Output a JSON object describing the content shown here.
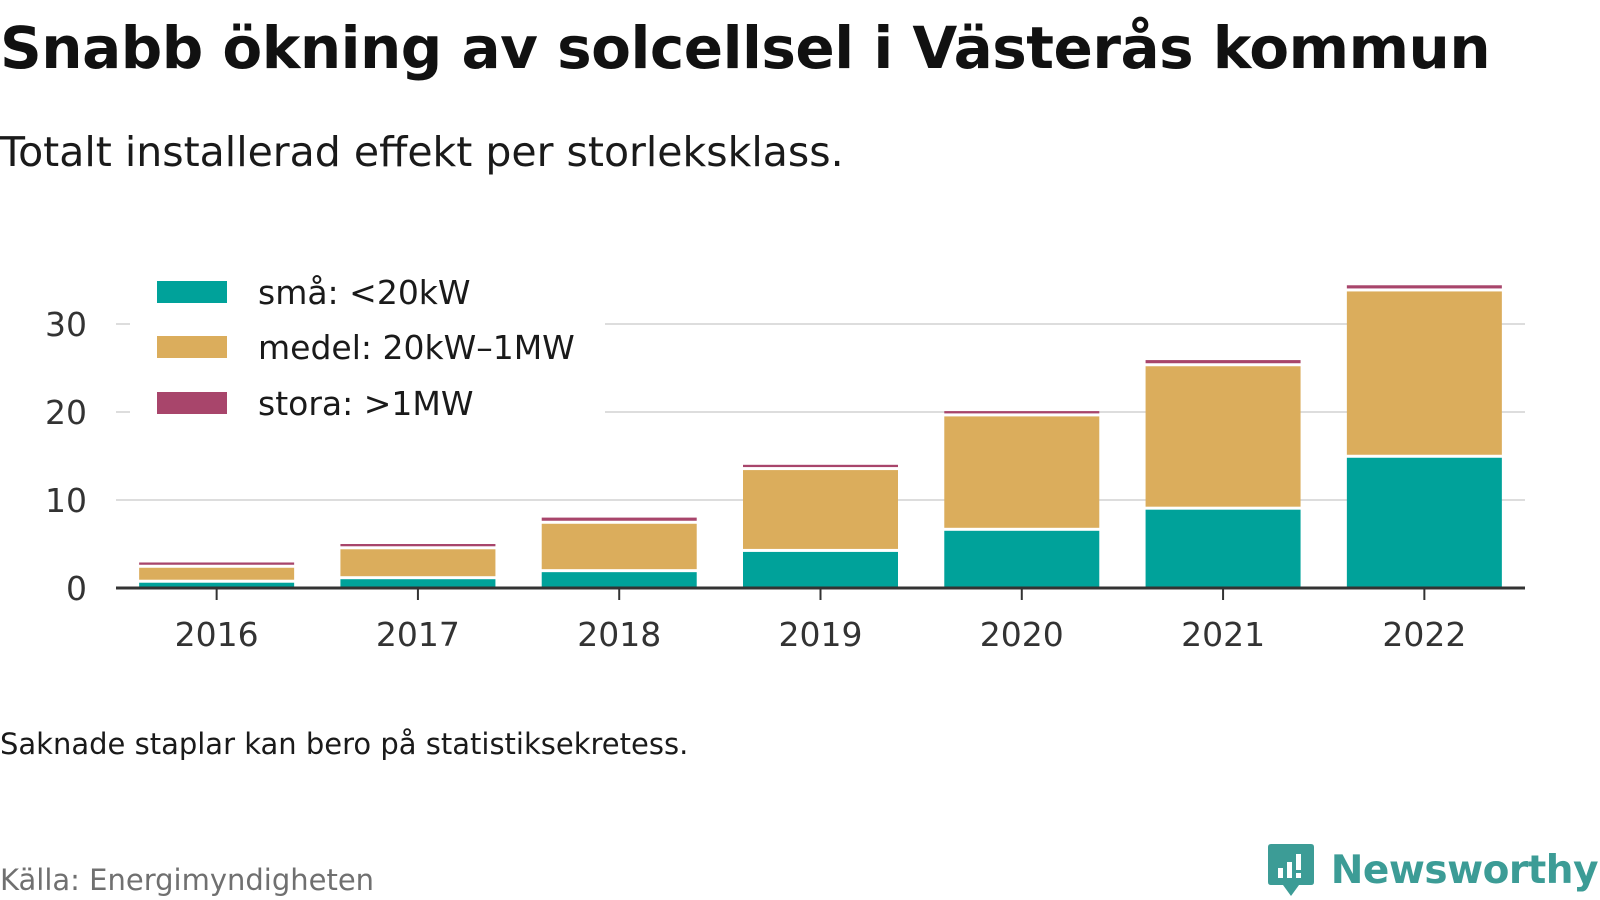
{
  "header": {
    "title": "Snabb ökning av solcellsel i Västerås kommun",
    "subtitle": "Totalt installerad effekt per storleksklass."
  },
  "footer": {
    "note": "Saknade staplar kan bero på statistiksekretess.",
    "source": "Källa: Energimyndigheten",
    "brand": "Newsworthy",
    "brand_icon": "newsworthy-logo-icon"
  },
  "colors": {
    "small": "#00a29a",
    "medium": "#dbad5c",
    "large": "#a8456b",
    "grid": "#dddddd",
    "axis": "#333333",
    "brand": "#3c9c96"
  },
  "chart_data": {
    "type": "bar",
    "stacked": true,
    "categories": [
      "2016",
      "2017",
      "2018",
      "2019",
      "2020",
      "2021",
      "2022"
    ],
    "series": [
      {
        "name": "små: <20kW",
        "color": "#00a29a",
        "values": [
          0.6,
          1.0,
          1.8,
          4.1,
          6.5,
          8.9,
          14.8
        ]
      },
      {
        "name": "medel: 20kW–1MW",
        "color": "#dbad5c",
        "values": [
          1.7,
          3.4,
          5.5,
          9.3,
          13.0,
          16.3,
          18.9
        ]
      },
      {
        "name": "stora: >1MW",
        "color": "#a8456b",
        "values": [
          0.6,
          0.6,
          0.7,
          0.6,
          0.6,
          0.7,
          0.7
        ]
      }
    ],
    "yticks": [
      0,
      10,
      20,
      30
    ],
    "ylim": [
      0,
      35
    ],
    "xlabel": "",
    "ylabel": "",
    "grid": true,
    "legend_position": "top-left"
  }
}
